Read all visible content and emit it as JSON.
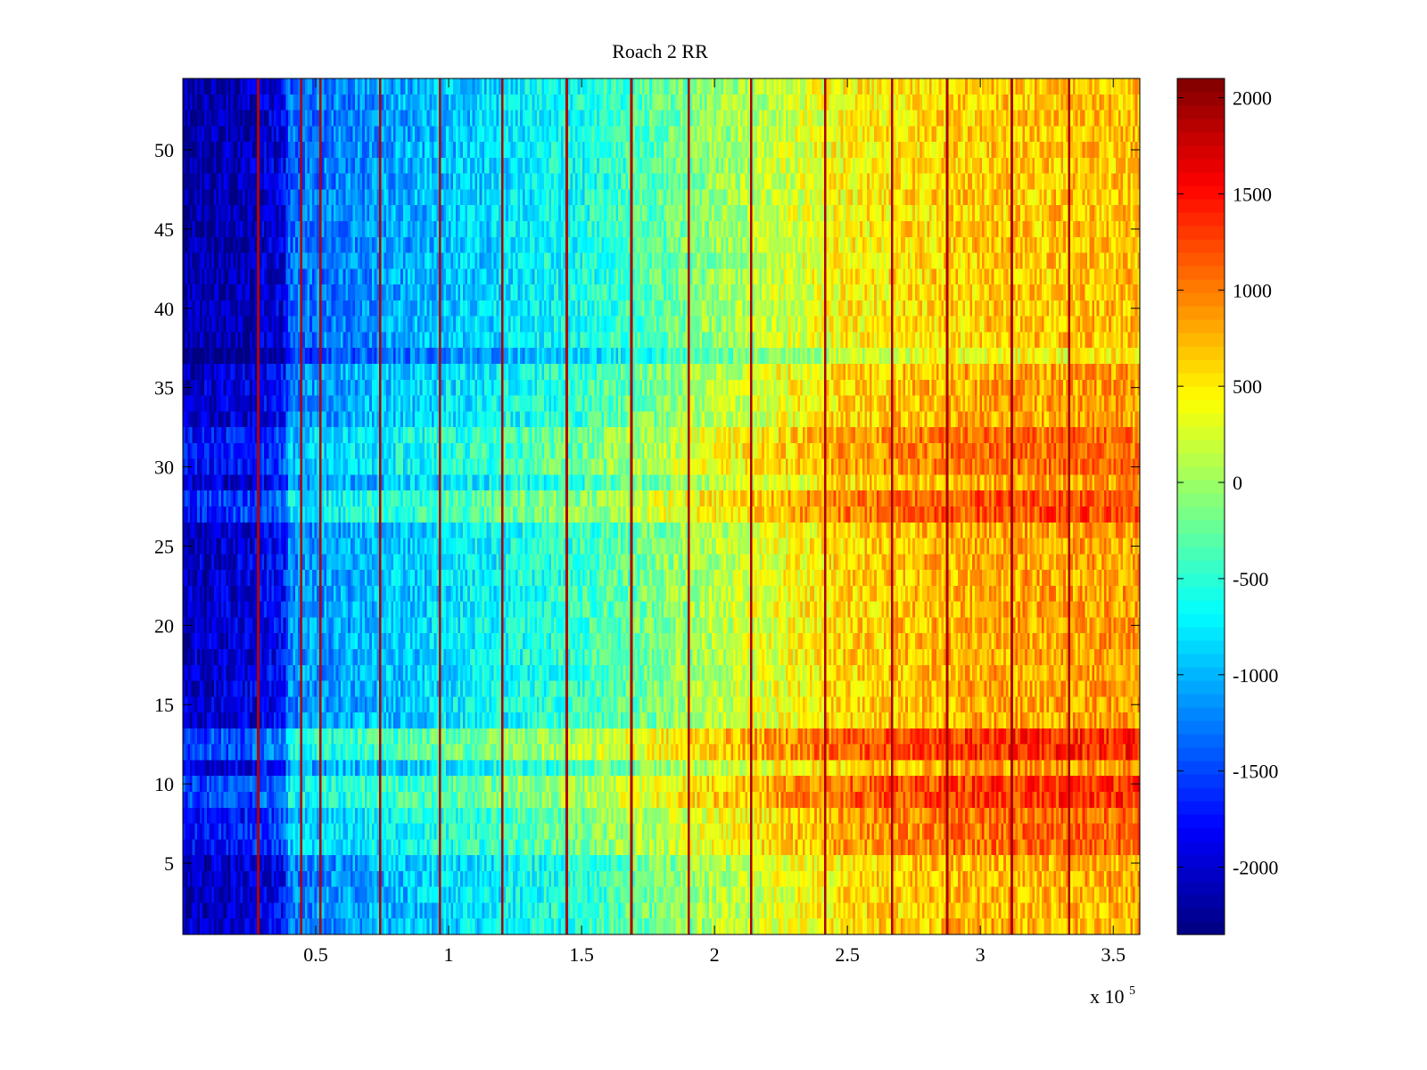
{
  "chart_data": {
    "type": "heatmap",
    "title": "Roach 2 RR",
    "xlabel": "",
    "ylabel": "",
    "x_exponent_label": "x 10",
    "x_exponent_power": "5",
    "xlim": [
      0,
      360000
    ],
    "ylim": [
      0.5,
      54.5
    ],
    "x_ticks": [
      {
        "value": 50000,
        "label": "0.5"
      },
      {
        "value": 100000,
        "label": "1"
      },
      {
        "value": 150000,
        "label": "1.5"
      },
      {
        "value": 200000,
        "label": "2"
      },
      {
        "value": 250000,
        "label": "2.5"
      },
      {
        "value": 300000,
        "label": "3"
      },
      {
        "value": 350000,
        "label": "3.5"
      }
    ],
    "y_ticks": [
      {
        "value": 5,
        "label": "5"
      },
      {
        "value": 10,
        "label": "10"
      },
      {
        "value": 15,
        "label": "15"
      },
      {
        "value": 20,
        "label": "20"
      },
      {
        "value": 25,
        "label": "25"
      },
      {
        "value": 30,
        "label": "30"
      },
      {
        "value": 35,
        "label": "35"
      },
      {
        "value": 40,
        "label": "40"
      },
      {
        "value": 45,
        "label": "45"
      },
      {
        "value": 50,
        "label": "50"
      }
    ],
    "rows": 54,
    "colorbar": {
      "colormap": "jet",
      "clim": [
        -2350,
        2100
      ],
      "ticks": [
        {
          "value": 2000,
          "label": "2000"
        },
        {
          "value": 1500,
          "label": "1500"
        },
        {
          "value": 1000,
          "label": "1000"
        },
        {
          "value": 500,
          "label": "500"
        },
        {
          "value": 0,
          "label": "0"
        },
        {
          "value": -500,
          "label": "-500"
        },
        {
          "value": -1000,
          "label": "-1000"
        },
        {
          "value": -1500,
          "label": "-1500"
        },
        {
          "value": -2000,
          "label": "-2000"
        }
      ]
    },
    "x_profile": {
      "x": [
        0,
        25000,
        38000,
        40000,
        60000,
        100000,
        150000,
        200000,
        250000,
        300000,
        360000
      ],
      "value": [
        -2050,
        -1950,
        -1750,
        -1200,
        -1050,
        -800,
        -450,
        100,
        600,
        800,
        850
      ]
    },
    "row_offsets": [
      {
        "rows": [
          1,
          2,
          3,
          4,
          5
        ],
        "offset": -50
      },
      {
        "rows": [
          6,
          7,
          8
        ],
        "offset": 250
      },
      {
        "rows": [
          9,
          10
        ],
        "offset": 500
      },
      {
        "rows": [
          11
        ],
        "offset": 50
      },
      {
        "rows": [
          12,
          13
        ],
        "offset": 550
      },
      {
        "rows": [
          27,
          28
        ],
        "offset": 400
      },
      {
        "rows": [
          30,
          31,
          32
        ],
        "offset": 250
      },
      {
        "rows": [
          37
        ],
        "offset": -400
      },
      {
        "rows": [
          38,
          39,
          40,
          41,
          42,
          43,
          44,
          45,
          46,
          47,
          48,
          49,
          50,
          51,
          52,
          53,
          54
        ],
        "offset": -150
      }
    ],
    "dark_columns": [
      28000,
      44000,
      51000,
      74000,
      96000,
      120000,
      144000,
      168000,
      190000,
      213000,
      241000,
      266000,
      287000,
      311000,
      333000
    ],
    "noise_amplitude": 350
  }
}
